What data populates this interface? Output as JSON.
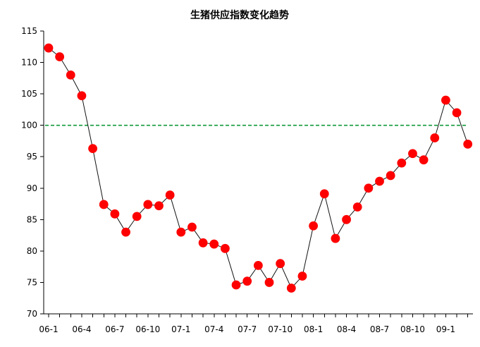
{
  "chart_data": {
    "type": "line",
    "title": "生猪供应指数变化趋势",
    "xlabel": "",
    "ylabel": "",
    "ylim": [
      70,
      115
    ],
    "y_ticks": [
      70,
      75,
      80,
      85,
      90,
      95,
      100,
      105,
      110,
      115
    ],
    "x_tick_labels": [
      "06-1",
      "06-4",
      "06-7",
      "06-10",
      "07-1",
      "07-4",
      "07-7",
      "07-10",
      "08-1",
      "08-4",
      "08-7",
      "08-10",
      "09-1"
    ],
    "x_tick_label_indices": [
      0,
      3,
      6,
      9,
      12,
      15,
      18,
      21,
      24,
      27,
      30,
      33,
      36
    ],
    "grid": false,
    "legend": "none",
    "reference_line": {
      "value": 100,
      "style": "dashed",
      "color": "#119a3a"
    },
    "series": [
      {
        "values": [
          112.3,
          110.9,
          108.0,
          104.7,
          96.3,
          87.4,
          85.9,
          83.0,
          85.5,
          87.4,
          87.2,
          88.9,
          83.0,
          83.8,
          81.3,
          81.1,
          80.4,
          74.6,
          75.2,
          77.7,
          75.0,
          78.0,
          74.1,
          76.0,
          84.0,
          89.1,
          82.0,
          85.0,
          87.0,
          90.0,
          91.1,
          92.0,
          94.0,
          95.5,
          94.5,
          98.0,
          104.0,
          102.0,
          97.0
        ],
        "line_color": "#111111",
        "marker_color": "#ff0000"
      }
    ]
  }
}
